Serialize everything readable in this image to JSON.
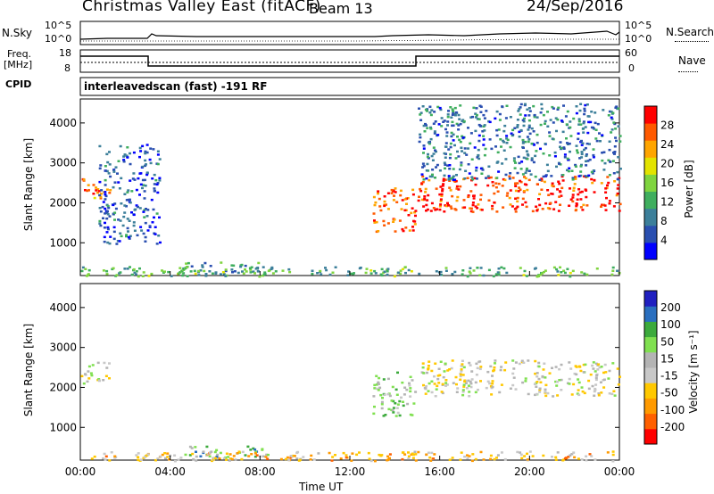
{
  "header": {
    "title": "Christmas Valley East (fitACF)",
    "beam": "Beam 13",
    "date": "24/Sep/2016"
  },
  "sky_panel": {
    "left_label": "N.Sky",
    "right_label": "N.Search",
    "left_ticks": [
      "10^5",
      "10^0"
    ],
    "right_ticks": [
      "10^5",
      "10^0"
    ]
  },
  "freq_panel": {
    "left_label_1": "Freq.",
    "left_label_2": "[MHz]",
    "left_ticks": [
      "18",
      "8"
    ],
    "right_label": "Nave",
    "right_ticks": [
      "60",
      "0"
    ]
  },
  "cpid": {
    "label": "CPID",
    "text": "interleavedscan (fast) -191 RF"
  },
  "colors": {
    "power_scale": [
      "#0000ff",
      "#2a4fb0",
      "#3c7f9a",
      "#3fae5e",
      "#7fd43f",
      "#e3e300",
      "#ffa500",
      "#ff5a00",
      "#ff0000"
    ],
    "velocity_scale": [
      "#ff0000",
      "#ff6000",
      "#ff9a00",
      "#ffc800",
      "#c8c8c8",
      "#b4b4b4",
      "#80e050",
      "#3caa3c",
      "#2a6fbf",
      "#2020c0"
    ]
  },
  "chart_data": [
    {
      "type": "heatmap",
      "name": "power",
      "ylabel": "Slant Range [km]",
      "x_ticks": [],
      "y_ticks": [
        "1000",
        "2000",
        "3000",
        "4000"
      ],
      "xlim": [
        0,
        24
      ],
      "ylim": [
        180,
        4600
      ],
      "colorbar": {
        "label": "Power [dB]",
        "ticks": [
          "4",
          "8",
          "12",
          "16",
          "20",
          "24",
          "28"
        ],
        "range": [
          0,
          32
        ]
      },
      "regions": [
        {
          "t0": 0.0,
          "t1": 1.3,
          "r0": 2100,
          "r1": 2650,
          "level": 0.82
        },
        {
          "t0": 0.8,
          "t1": 3.5,
          "r0": 1000,
          "r1": 3500,
          "level": 0.2
        },
        {
          "t0": 13.0,
          "t1": 14.9,
          "r0": 1300,
          "r1": 2400,
          "level": 0.85
        },
        {
          "t0": 15.0,
          "t1": 24.0,
          "r0": 1800,
          "r1": 2700,
          "level": 0.9
        },
        {
          "t0": 15.0,
          "t1": 24.0,
          "r0": 2600,
          "r1": 4500,
          "level": 0.25
        },
        {
          "t0": 4.5,
          "t1": 8.5,
          "r0": 250,
          "r1": 550,
          "level": 0.3
        },
        {
          "t0": 0.0,
          "t1": 24.0,
          "r0": 180,
          "r1": 420,
          "level": 0.4
        }
      ]
    },
    {
      "type": "heatmap",
      "name": "velocity",
      "xlabel": "Time UT",
      "ylabel": "Slant Range [km]",
      "x_ticks": [
        "00:00",
        "04:00",
        "08:00",
        "12:00",
        "16:00",
        "20:00",
        "00:00"
      ],
      "y_ticks": [
        "1000",
        "2000",
        "3000",
        "4000"
      ],
      "xlim": [
        0,
        24
      ],
      "ylim": [
        180,
        4600
      ],
      "colorbar": {
        "label": "Velocity [m s⁻¹]",
        "ticks": [
          "200",
          "100",
          "50",
          "15",
          "-15",
          "-50",
          "-100",
          "-200"
        ],
        "range": [
          -250,
          250
        ]
      },
      "regions": [
        {
          "t0": 0.0,
          "t1": 1.3,
          "r0": 2100,
          "r1": 2650,
          "level": 0.5
        },
        {
          "t0": 13.0,
          "t1": 14.9,
          "r0": 1300,
          "r1": 2400,
          "level": 0.62
        },
        {
          "t0": 15.0,
          "t1": 24.0,
          "r0": 1800,
          "r1": 2700,
          "level": 0.48
        },
        {
          "t0": 4.5,
          "t1": 8.5,
          "r0": 250,
          "r1": 550,
          "level": 0.7
        },
        {
          "t0": 0.0,
          "t1": 24.0,
          "r0": 180,
          "r1": 420,
          "level": 0.35
        }
      ]
    }
  ]
}
